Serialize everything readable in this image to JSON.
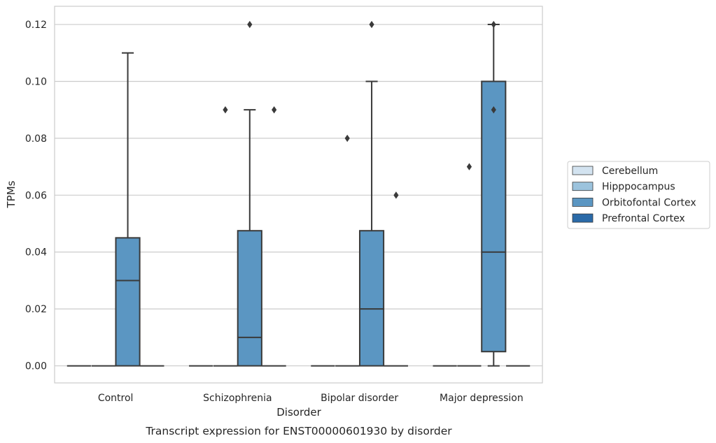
{
  "chart_data": {
    "type": "box",
    "xlabel": "Disorder",
    "ylabel": "TPMs",
    "caption": "Transcript expression for ENST00000601930 by disorder",
    "ylim": [
      -0.006,
      0.1264
    ],
    "yticks": [
      "0.00",
      "0.02",
      "0.04",
      "0.06",
      "0.08",
      "0.10",
      "0.12"
    ],
    "ytick_values": [
      0,
      0.02,
      0.04,
      0.06,
      0.08,
      0.1,
      0.12
    ],
    "grid": true,
    "legend_position": "right",
    "categories": [
      "Control",
      "Schizophrenia",
      "Bipolar disorder",
      "Major depression"
    ],
    "series": [
      {
        "name": "Cerebellum",
        "color": "#d3e3f0",
        "boxes": [
          {
            "category": "Control",
            "min": 0,
            "q1": 0,
            "median": 0,
            "q3": 0,
            "max": 0,
            "outliers": []
          },
          {
            "category": "Schizophrenia",
            "min": 0,
            "q1": 0,
            "median": 0,
            "q3": 0,
            "max": 0,
            "outliers": []
          },
          {
            "category": "Bipolar disorder",
            "min": 0,
            "q1": 0,
            "median": 0,
            "q3": 0,
            "max": 0,
            "outliers": []
          },
          {
            "category": "Major depression",
            "min": 0,
            "q1": 0,
            "median": 0,
            "q3": 0,
            "max": 0,
            "outliers": []
          }
        ]
      },
      {
        "name": "Hipppocampus",
        "color": "#9cc3dd",
        "boxes": [
          {
            "category": "Control",
            "min": 0,
            "q1": 0,
            "median": 0,
            "q3": 0,
            "max": 0,
            "outliers": []
          },
          {
            "category": "Schizophrenia",
            "min": 0,
            "q1": 0,
            "median": 0,
            "q3": 0,
            "max": 0,
            "outliers": [
              0.09
            ]
          },
          {
            "category": "Bipolar disorder",
            "min": 0,
            "q1": 0,
            "median": 0,
            "q3": 0,
            "max": 0,
            "outliers": [
              0.08
            ]
          },
          {
            "category": "Major depression",
            "min": 0,
            "q1": 0,
            "median": 0,
            "q3": 0,
            "max": 0,
            "outliers": [
              0.07
            ]
          }
        ]
      },
      {
        "name": "Orbitofontal Cortex",
        "color": "#5b96c2",
        "boxes": [
          {
            "category": "Control",
            "min": 0,
            "q1": 0,
            "median": 0.03,
            "q3": 0.045,
            "max": 0.11,
            "outliers": []
          },
          {
            "category": "Schizophrenia",
            "min": 0,
            "q1": 0,
            "median": 0.01,
            "q3": 0.0475,
            "max": 0.09,
            "outliers": [
              0.12
            ]
          },
          {
            "category": "Bipolar disorder",
            "min": 0,
            "q1": 0,
            "median": 0.02,
            "q3": 0.0475,
            "max": 0.1,
            "outliers": [
              0.12
            ]
          },
          {
            "category": "Major depression",
            "min": 0,
            "q1": 0.005,
            "median": 0.04,
            "q3": 0.1,
            "max": 0.12,
            "outliers": [
              0.09,
              0.12
            ]
          }
        ]
      },
      {
        "name": "Prefrontal Cortex",
        "color": "#2a6aa8",
        "boxes": [
          {
            "category": "Control",
            "min": 0,
            "q1": 0,
            "median": 0,
            "q3": 0,
            "max": 0,
            "outliers": []
          },
          {
            "category": "Schizophrenia",
            "min": 0,
            "q1": 0,
            "median": 0,
            "q3": 0,
            "max": 0,
            "outliers": [
              0.09
            ]
          },
          {
            "category": "Bipolar disorder",
            "min": 0,
            "q1": 0,
            "median": 0,
            "q3": 0,
            "max": 0,
            "outliers": [
              0.06
            ]
          },
          {
            "category": "Major depression",
            "min": 0,
            "q1": 0,
            "median": 0,
            "q3": 0,
            "max": 0,
            "outliers": []
          }
        ]
      }
    ]
  }
}
